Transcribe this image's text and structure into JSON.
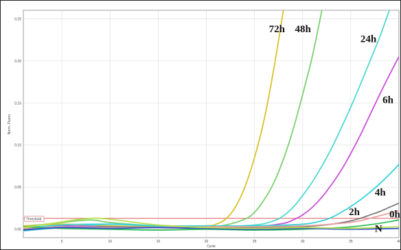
{
  "chart_data": {
    "type": "line",
    "xlabel": "Cycle",
    "ylabel": "Norm. Fluoro.",
    "xlim": [
      1,
      40
    ],
    "ylim": [
      -0.01,
      0.26
    ],
    "x_ticks": [
      {
        "value": 5,
        "label": "5"
      },
      {
        "value": 10,
        "label": "10"
      },
      {
        "value": 15,
        "label": "15"
      },
      {
        "value": 20,
        "label": "20"
      },
      {
        "value": 25,
        "label": "25"
      },
      {
        "value": 30,
        "label": "30"
      },
      {
        "value": 35,
        "label": "35"
      },
      {
        "value": 40,
        "label": "40"
      }
    ],
    "y_ticks": [
      {
        "value": 0.0,
        "label": "0.00"
      },
      {
        "value": 0.05,
        "label": "0.05"
      },
      {
        "value": 0.1,
        "label": "0.10"
      },
      {
        "value": 0.15,
        "label": "0.15"
      },
      {
        "value": 0.2,
        "label": "0.20"
      },
      {
        "value": 0.25,
        "label": "0.25"
      }
    ],
    "grid": true,
    "threshold": {
      "label": "Threshold",
      "value": 0.013,
      "color": "#e58a8a"
    },
    "series": [
      {
        "name": "72h",
        "color": "#d9c12a",
        "label_at": [
          26.5,
          0.234
        ],
        "points": [
          [
            1,
            0.004
          ],
          [
            5,
            0.006
          ],
          [
            10,
            0.004
          ],
          [
            15,
            0.003
          ],
          [
            20,
            0.004
          ],
          [
            21,
            0.006
          ],
          [
            22,
            0.012
          ],
          [
            23,
            0.026
          ],
          [
            24,
            0.05
          ],
          [
            25,
            0.085
          ],
          [
            26,
            0.13
          ],
          [
            27,
            0.19
          ],
          [
            28,
            0.26
          ]
        ]
      },
      {
        "name": "48h",
        "color": "#79d06e",
        "label_at": [
          29.2,
          0.234
        ],
        "points": [
          [
            1,
            0.003
          ],
          [
            5,
            0.008
          ],
          [
            8,
            0.011
          ],
          [
            10,
            0.008
          ],
          [
            15,
            0.004
          ],
          [
            20,
            0.003
          ],
          [
            22,
            0.005
          ],
          [
            24,
            0.012
          ],
          [
            25,
            0.02
          ],
          [
            26,
            0.035
          ],
          [
            27,
            0.055
          ],
          [
            28,
            0.083
          ],
          [
            29,
            0.118
          ],
          [
            30,
            0.16
          ],
          [
            31,
            0.205
          ],
          [
            32,
            0.26
          ]
        ]
      },
      {
        "name": "24h",
        "color": "#4fd8cf",
        "label_at": [
          36.0,
          0.222
        ],
        "points": [
          [
            1,
            -0.002
          ],
          [
            5,
            0.002
          ],
          [
            10,
            0.006
          ],
          [
            15,
            0.004
          ],
          [
            20,
            0.003
          ],
          [
            25,
            0.005
          ],
          [
            27,
            0.01
          ],
          [
            28,
            0.016
          ],
          [
            29,
            0.026
          ],
          [
            30,
            0.04
          ],
          [
            31,
            0.056
          ],
          [
            32,
            0.075
          ],
          [
            33,
            0.096
          ],
          [
            34,
            0.12
          ],
          [
            35,
            0.145
          ],
          [
            36,
            0.172
          ],
          [
            37,
            0.2
          ],
          [
            38,
            0.228
          ],
          [
            39,
            0.26
          ]
        ]
      },
      {
        "name": "6h",
        "color": "#c84fd6",
        "label_at": [
          38.3,
          0.15
        ],
        "points": [
          [
            1,
            0.002
          ],
          [
            5,
            0.004
          ],
          [
            10,
            0.003
          ],
          [
            15,
            0.002
          ],
          [
            20,
            0.002
          ],
          [
            25,
            0.003
          ],
          [
            28,
            0.007
          ],
          [
            29,
            0.011
          ],
          [
            30,
            0.017
          ],
          [
            31,
            0.026
          ],
          [
            32,
            0.038
          ],
          [
            33,
            0.053
          ],
          [
            34,
            0.07
          ],
          [
            35,
            0.09
          ],
          [
            36,
            0.112
          ],
          [
            37,
            0.136
          ],
          [
            38,
            0.16
          ],
          [
            39,
            0.183
          ],
          [
            40,
            0.205
          ]
        ]
      },
      {
        "name": "4h",
        "color": "#2ed3d9",
        "label_at": [
          37.5,
          0.04
        ],
        "points": [
          [
            1,
            0.001
          ],
          [
            5,
            0.005
          ],
          [
            10,
            0.006
          ],
          [
            15,
            0.004
          ],
          [
            20,
            0.004
          ],
          [
            25,
            0.004
          ],
          [
            30,
            0.006
          ],
          [
            32,
            0.01
          ],
          [
            33,
            0.014
          ],
          [
            34,
            0.02
          ],
          [
            35,
            0.027
          ],
          [
            36,
            0.035
          ],
          [
            37,
            0.044
          ],
          [
            38,
            0.054
          ],
          [
            39,
            0.065
          ],
          [
            40,
            0.077
          ]
        ]
      },
      {
        "name": "2h",
        "color": "#7a7a7a",
        "label_at": [
          34.8,
          0.017
        ],
        "points": [
          [
            1,
            0.0
          ],
          [
            5,
            0.002
          ],
          [
            10,
            0.003
          ],
          [
            15,
            0.002
          ],
          [
            20,
            0.001
          ],
          [
            25,
            0.002
          ],
          [
            30,
            0.003
          ],
          [
            33,
            0.006
          ],
          [
            35,
            0.01
          ],
          [
            36,
            0.013
          ],
          [
            37,
            0.017
          ],
          [
            38,
            0.021
          ],
          [
            39,
            0.026
          ],
          [
            40,
            0.031
          ]
        ]
      },
      {
        "name": "0h",
        "color": "#e8a0a0",
        "label_at": [
          39.0,
          0.014
        ],
        "points": [
          [
            1,
            0.001
          ],
          [
            5,
            0.003
          ],
          [
            10,
            0.002
          ],
          [
            15,
            0.002
          ],
          [
            20,
            0.003
          ],
          [
            25,
            0.003
          ],
          [
            30,
            0.004
          ],
          [
            34,
            0.007
          ],
          [
            36,
            0.01
          ],
          [
            37,
            0.013
          ],
          [
            38,
            0.016
          ],
          [
            39,
            0.019
          ],
          [
            40,
            0.022
          ]
        ]
      },
      {
        "name": "N",
        "color": "#2fbf54",
        "label_at": [
          37.5,
          -0.003
        ],
        "points": [
          [
            1,
            0.003
          ],
          [
            5,
            0.001
          ],
          [
            10,
            0.0
          ],
          [
            15,
            -0.001
          ],
          [
            20,
            0.0
          ],
          [
            25,
            -0.001
          ],
          [
            30,
            0.0
          ],
          [
            34,
            0.002
          ],
          [
            36,
            0.004
          ],
          [
            38,
            0.007
          ],
          [
            40,
            0.011
          ]
        ]
      },
      {
        "name": "",
        "color": "#3050d0",
        "label_at": null,
        "points": [
          [
            1,
            -0.001
          ],
          [
            5,
            0.002
          ],
          [
            10,
            0.001
          ],
          [
            15,
            0.002
          ],
          [
            20,
            0.001
          ],
          [
            25,
            0.0
          ],
          [
            30,
            0.001
          ],
          [
            35,
            0.0
          ],
          [
            40,
            0.001
          ]
        ]
      },
      {
        "name": "",
        "color": "#b8e04a",
        "label_at": null,
        "points": [
          [
            1,
            0.002
          ],
          [
            4,
            0.007
          ],
          [
            7,
            0.012
          ],
          [
            9,
            0.013
          ],
          [
            12,
            0.009
          ],
          [
            15,
            0.005
          ],
          [
            18,
            0.003
          ],
          [
            20,
            0.002
          ],
          [
            25,
            0.001
          ],
          [
            30,
            0.002
          ],
          [
            35,
            0.001
          ],
          [
            40,
            0.003
          ]
        ]
      }
    ]
  }
}
